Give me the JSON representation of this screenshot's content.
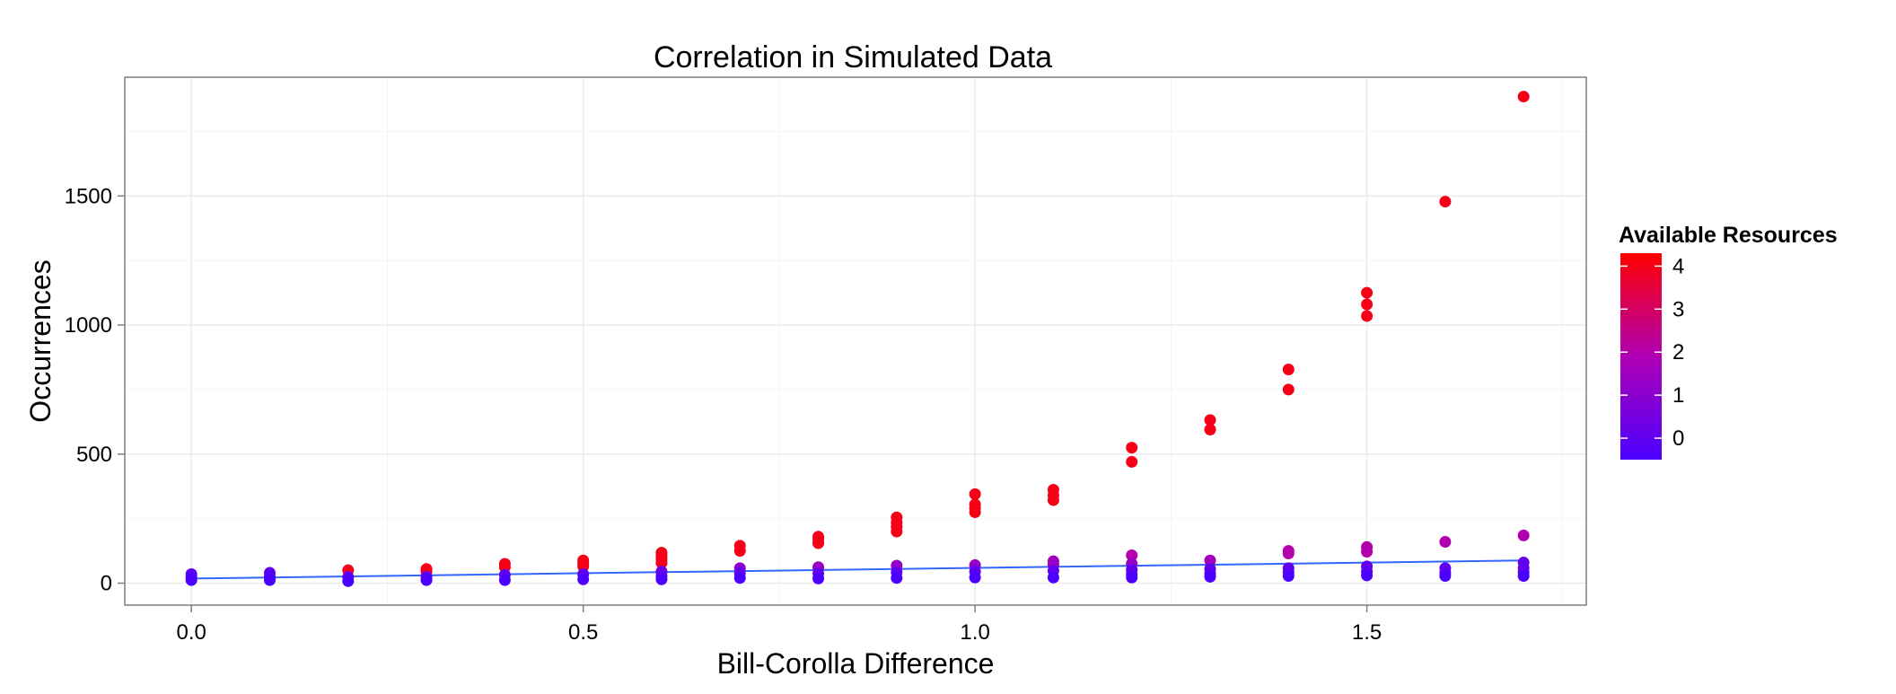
{
  "chart_data": {
    "type": "scatter",
    "title": "Correlation in Simulated Data",
    "xlabel": "Bill-Corolla Difference",
    "ylabel": "Occurrences",
    "xlim": [
      -0.085,
      1.78
    ],
    "ylim": [
      -85,
      1960
    ],
    "x_ticks": [
      {
        "value": 0.0,
        "label": "0.0"
      },
      {
        "value": 0.5,
        "label": "0.5"
      },
      {
        "value": 1.0,
        "label": "1.0"
      },
      {
        "value": 1.5,
        "label": "1.5"
      }
    ],
    "y_ticks": [
      {
        "value": 0,
        "label": "0"
      },
      {
        "value": 500,
        "label": "500"
      },
      {
        "value": 1000,
        "label": "1000"
      },
      {
        "value": 1500,
        "label": "1500"
      }
    ],
    "grid": true,
    "legend": {
      "title": "Available Resources",
      "position": "right",
      "ticks": [
        {
          "value": 4,
          "label": "4"
        },
        {
          "value": 3,
          "label": "3"
        },
        {
          "value": 2,
          "label": "2"
        },
        {
          "value": 1,
          "label": "1"
        },
        {
          "value": 0,
          "label": "0"
        }
      ],
      "range": [
        -0.5,
        4.3
      ],
      "low_color": "#4b00ff",
      "mid_color": "#b000b4",
      "high_color": "#ff0000"
    },
    "trend_line": {
      "color": "#3366ff",
      "points": [
        [
          0.0,
          18
        ],
        [
          1.7,
          88
        ]
      ]
    },
    "points": [
      {
        "x": 0.0,
        "y": 35,
        "c": 0
      },
      {
        "x": 0.0,
        "y": 22,
        "c": -0.3
      },
      {
        "x": 0.0,
        "y": 12,
        "c": -0.5
      },
      {
        "x": 0.1,
        "y": 40,
        "c": 0
      },
      {
        "x": 0.1,
        "y": 25,
        "c": -0.3
      },
      {
        "x": 0.1,
        "y": 12,
        "c": -0.5
      },
      {
        "x": 0.2,
        "y": 50,
        "c": 4
      },
      {
        "x": 0.2,
        "y": 24,
        "c": 0
      },
      {
        "x": 0.2,
        "y": 8,
        "c": -0.5
      },
      {
        "x": 0.3,
        "y": 55,
        "c": 4
      },
      {
        "x": 0.3,
        "y": 45,
        "c": 4
      },
      {
        "x": 0.3,
        "y": 25,
        "c": 0
      },
      {
        "x": 0.3,
        "y": 12,
        "c": -0.5
      },
      {
        "x": 0.4,
        "y": 75,
        "c": 4
      },
      {
        "x": 0.4,
        "y": 62,
        "c": 4
      },
      {
        "x": 0.4,
        "y": 32,
        "c": 0
      },
      {
        "x": 0.4,
        "y": 12,
        "c": -0.5
      },
      {
        "x": 0.5,
        "y": 88,
        "c": 4
      },
      {
        "x": 0.5,
        "y": 78,
        "c": 4
      },
      {
        "x": 0.5,
        "y": 65,
        "c": 4
      },
      {
        "x": 0.5,
        "y": 35,
        "c": 0
      },
      {
        "x": 0.5,
        "y": 15,
        "c": -0.5
      },
      {
        "x": 0.6,
        "y": 118,
        "c": 4
      },
      {
        "x": 0.6,
        "y": 105,
        "c": 4
      },
      {
        "x": 0.6,
        "y": 92,
        "c": 4
      },
      {
        "x": 0.6,
        "y": 78,
        "c": 4
      },
      {
        "x": 0.6,
        "y": 45,
        "c": 0.3
      },
      {
        "x": 0.6,
        "y": 28,
        "c": 0
      },
      {
        "x": 0.6,
        "y": 15,
        "c": -0.5
      },
      {
        "x": 0.7,
        "y": 145,
        "c": 4
      },
      {
        "x": 0.7,
        "y": 125,
        "c": 4
      },
      {
        "x": 0.7,
        "y": 58,
        "c": 1
      },
      {
        "x": 0.7,
        "y": 38,
        "c": 0
      },
      {
        "x": 0.7,
        "y": 20,
        "c": -0.5
      },
      {
        "x": 0.8,
        "y": 180,
        "c": 4
      },
      {
        "x": 0.8,
        "y": 168,
        "c": 4
      },
      {
        "x": 0.8,
        "y": 155,
        "c": 4
      },
      {
        "x": 0.8,
        "y": 62,
        "c": 1.3
      },
      {
        "x": 0.8,
        "y": 38,
        "c": 0
      },
      {
        "x": 0.8,
        "y": 18,
        "c": -0.5
      },
      {
        "x": 0.9,
        "y": 255,
        "c": 4
      },
      {
        "x": 0.9,
        "y": 235,
        "c": 4
      },
      {
        "x": 0.9,
        "y": 218,
        "c": 4
      },
      {
        "x": 0.9,
        "y": 200,
        "c": 4
      },
      {
        "x": 0.9,
        "y": 68,
        "c": 1.3
      },
      {
        "x": 0.9,
        "y": 42,
        "c": 0
      },
      {
        "x": 0.9,
        "y": 20,
        "c": -0.5
      },
      {
        "x": 1.0,
        "y": 345,
        "c": 4
      },
      {
        "x": 1.0,
        "y": 305,
        "c": 4
      },
      {
        "x": 1.0,
        "y": 290,
        "c": 4
      },
      {
        "x": 1.0,
        "y": 275,
        "c": 4
      },
      {
        "x": 1.0,
        "y": 70,
        "c": 1.3
      },
      {
        "x": 1.0,
        "y": 45,
        "c": 0
      },
      {
        "x": 1.0,
        "y": 22,
        "c": -0.5
      },
      {
        "x": 1.1,
        "y": 362,
        "c": 4
      },
      {
        "x": 1.1,
        "y": 340,
        "c": 4
      },
      {
        "x": 1.1,
        "y": 322,
        "c": 4
      },
      {
        "x": 1.1,
        "y": 85,
        "c": 1.6
      },
      {
        "x": 1.1,
        "y": 72,
        "c": 1.3
      },
      {
        "x": 1.1,
        "y": 48,
        "c": 0
      },
      {
        "x": 1.1,
        "y": 22,
        "c": -0.5
      },
      {
        "x": 1.2,
        "y": 525,
        "c": 4
      },
      {
        "x": 1.2,
        "y": 470,
        "c": 4
      },
      {
        "x": 1.2,
        "y": 108,
        "c": 2
      },
      {
        "x": 1.2,
        "y": 75,
        "c": 1.3
      },
      {
        "x": 1.2,
        "y": 52,
        "c": 0
      },
      {
        "x": 1.2,
        "y": 35,
        "c": 0
      },
      {
        "x": 1.2,
        "y": 22,
        "c": -0.5
      },
      {
        "x": 1.3,
        "y": 632,
        "c": 4
      },
      {
        "x": 1.3,
        "y": 595,
        "c": 4
      },
      {
        "x": 1.3,
        "y": 88,
        "c": 1.6
      },
      {
        "x": 1.3,
        "y": 55,
        "c": 0
      },
      {
        "x": 1.3,
        "y": 38,
        "c": 0
      },
      {
        "x": 1.3,
        "y": 25,
        "c": -0.5
      },
      {
        "x": 1.4,
        "y": 828,
        "c": 4
      },
      {
        "x": 1.4,
        "y": 750,
        "c": 4
      },
      {
        "x": 1.4,
        "y": 125,
        "c": 2
      },
      {
        "x": 1.4,
        "y": 115,
        "c": 2
      },
      {
        "x": 1.4,
        "y": 58,
        "c": 0
      },
      {
        "x": 1.4,
        "y": 42,
        "c": 0
      },
      {
        "x": 1.4,
        "y": 28,
        "c": -0.5
      },
      {
        "x": 1.5,
        "y": 1125,
        "c": 4
      },
      {
        "x": 1.5,
        "y": 1080,
        "c": 4
      },
      {
        "x": 1.5,
        "y": 1035,
        "c": 4
      },
      {
        "x": 1.5,
        "y": 140,
        "c": 2
      },
      {
        "x": 1.5,
        "y": 122,
        "c": 2
      },
      {
        "x": 1.5,
        "y": 65,
        "c": 0
      },
      {
        "x": 1.5,
        "y": 45,
        "c": 0
      },
      {
        "x": 1.5,
        "y": 30,
        "c": -0.5
      },
      {
        "x": 1.6,
        "y": 1478,
        "c": 4
      },
      {
        "x": 1.6,
        "y": 160,
        "c": 2
      },
      {
        "x": 1.6,
        "y": 58,
        "c": 0
      },
      {
        "x": 1.6,
        "y": 40,
        "c": 0
      },
      {
        "x": 1.6,
        "y": 28,
        "c": -0.5
      },
      {
        "x": 1.7,
        "y": 1885,
        "c": 4
      },
      {
        "x": 1.7,
        "y": 185,
        "c": 2
      },
      {
        "x": 1.7,
        "y": 80,
        "c": 0
      },
      {
        "x": 1.7,
        "y": 58,
        "c": 0
      },
      {
        "x": 1.7,
        "y": 42,
        "c": 0
      },
      {
        "x": 1.7,
        "y": 28,
        "c": -0.5
      }
    ]
  }
}
